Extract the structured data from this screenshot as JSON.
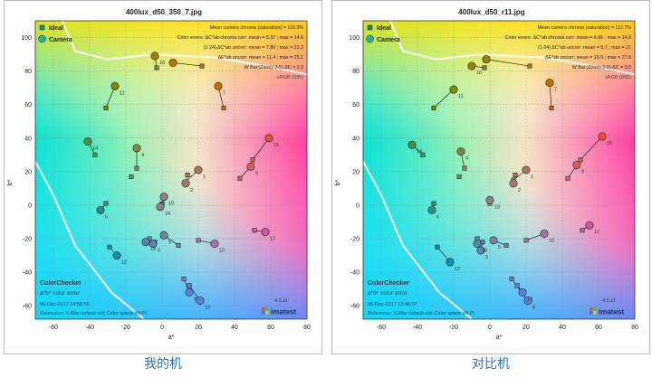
{
  "panels": [
    {
      "title": "400lux_d50_350_7.jpg",
      "caption": "我的机",
      "chroma_title": "Mean camera chroma (saturation) = 116.3%",
      "err_chroma": "Color errors:  ΔC*ab chroma corr:  mean = 5.37 ;  max = 14.6",
      "err_uncorr": "(1-24)        ΔC*ab uncorr:  mean = 7.86 ;  max = 22.3",
      "err_e": "ΔE*ab uncorr:  mean = 11.4 ;  max = 25.1",
      "wbal": "W Bal (Zones 2-5)  ΔC = 2.3",
      "srgb": "sRGB (D65)",
      "legend_ideal": "Ideal",
      "legend_camera": "Camera",
      "cc_title": "ColorChecker",
      "cc_sub": "a*b* color error",
      "date": "06-Dec-2017  14:58:56",
      "reference": "Reference: X-Rite default old; Color space Wt Pt",
      "version": "4.5.11",
      "brand": "imatest",
      "xlabel": "a*",
      "ylabel": "b*",
      "xticks": [
        "-60",
        "-40",
        "-20",
        "0",
        "20",
        "40",
        "60",
        "80"
      ],
      "yticks": [
        "100",
        "80",
        "60",
        "40",
        "20",
        "0",
        "-20",
        "-40",
        "-60"
      ]
    },
    {
      "title": "400lux_d50_r11.jpg",
      "caption": "对比机",
      "chroma_title": "Mean camera chroma (saturation) = 112.7%",
      "err_chroma": "Color errors:  ΔC*ab chroma corr:  mean = 6.66 ;  max = 14.9",
      "err_uncorr": "(1-24)        ΔC*ab uncorr:  mean = 8.7 ;  max = 21",
      "err_e": "ΔE*ab uncorr:  mean = 15.5 ;  max = 27.8",
      "wbal": "W Bal (Zones 2-5)  ΔC = 3.0",
      "srgb": "sRGB (D65)",
      "legend_ideal": "Ideal",
      "legend_camera": "Camera",
      "cc_title": "ColorChecker",
      "cc_sub": "a*b* color error",
      "date": "06-Dec-2017  13:46:07",
      "reference": "Reference: X-Rite default old; Color space Wt Pt",
      "version": "4.5.11",
      "brand": "imatest",
      "xlabel": "a*",
      "ylabel": "b*",
      "xticks": [
        "-60",
        "-40",
        "-20",
        "0",
        "20",
        "40",
        "60",
        "80"
      ],
      "yticks": [
        "100",
        "80",
        "60",
        "40",
        "20",
        "0",
        "-20",
        "-40",
        "-60"
      ]
    }
  ],
  "chart_data": [
    {
      "type": "scatter",
      "title": "400lux_d50_350_7.jpg",
      "xlabel": "a*",
      "ylabel": "b*",
      "xlim": [
        -70,
        80
      ],
      "ylim": [
        -68,
        110
      ],
      "series": [
        {
          "name": "Ideal",
          "points": [
            {
              "id": "1",
              "x": 13,
              "y": 14
            },
            {
              "id": "2",
              "x": 14,
              "y": 18
            },
            {
              "id": "3",
              "x": -4,
              "y": -22
            },
            {
              "id": "4",
              "x": -14,
              "y": 22
            },
            {
              "id": "5",
              "x": 9,
              "y": -24
            },
            {
              "id": "6",
              "x": -31,
              "y": 1
            },
            {
              "id": "7",
              "x": 34,
              "y": 58
            },
            {
              "id": "8",
              "x": 12,
              "y": -44
            },
            {
              "id": "9",
              "x": 43,
              "y": 16
            },
            {
              "id": "10",
              "x": 20,
              "y": -21
            },
            {
              "id": "11",
              "x": -31,
              "y": 58
            },
            {
              "id": "12",
              "x": -29,
              "y": -25
            },
            {
              "id": "13",
              "x": 15,
              "y": -48
            },
            {
              "id": "14",
              "x": -37,
              "y": 30
            },
            {
              "id": "15",
              "x": 50,
              "y": 27
            },
            {
              "id": "16",
              "x": -3,
              "y": 82
            },
            {
              "id": "17",
              "x": 51,
              "y": -15
            },
            {
              "id": "18",
              "x": -7,
              "y": -20
            },
            {
              "id": "19",
              "x": 0,
              "y": 1
            },
            {
              "id": "21",
              "x": 0,
              "y": 0
            },
            {
              "id": "23",
              "x": 0,
              "y": 0
            },
            {
              "id": "24",
              "x": 0,
              "y": 0
            },
            {
              "id": "a",
              "x": -17,
              "y": 17
            },
            {
              "id": "b",
              "x": 22,
              "y": 83
            }
          ]
        },
        {
          "name": "Camera",
          "points": [
            {
              "id": "1",
              "x": 20,
              "y": 21
            },
            {
              "id": "2",
              "x": 13,
              "y": 13
            },
            {
              "id": "3",
              "x": -5,
              "y": -23
            },
            {
              "id": "4",
              "x": -14,
              "y": 34
            },
            {
              "id": "5",
              "x": 1,
              "y": -18
            },
            {
              "id": "6",
              "x": -34,
              "y": -3
            },
            {
              "id": "7",
              "x": 31,
              "y": 71
            },
            {
              "id": "8",
              "x": 15,
              "y": -52
            },
            {
              "id": "9",
              "x": 49,
              "y": 23
            },
            {
              "id": "10",
              "x": 29,
              "y": -23
            },
            {
              "id": "11",
              "x": -26,
              "y": 71
            },
            {
              "id": "12",
              "x": -25,
              "y": -30
            },
            {
              "id": "13",
              "x": 21,
              "y": -57
            },
            {
              "id": "14",
              "x": -41,
              "y": 38
            },
            {
              "id": "15",
              "x": 59,
              "y": 40
            },
            {
              "id": "16",
              "x": -4,
              "y": 89
            },
            {
              "id": "17",
              "x": 57,
              "y": -16
            },
            {
              "id": "18",
              "x": -9,
              "y": -22
            },
            {
              "id": "19",
              "x": 1,
              "y": 5
            },
            {
              "id": "24",
              "x": -1,
              "y": -1
            },
            {
              "id": "b",
              "x": 6,
              "y": 85
            }
          ]
        }
      ]
    },
    {
      "type": "scatter",
      "title": "400lux_d50_r11.jpg",
      "xlabel": "a*",
      "ylabel": "b*",
      "xlim": [
        -70,
        80
      ],
      "ylim": [
        -68,
        110
      ],
      "series": [
        {
          "name": "Ideal",
          "points": [
            {
              "id": "1",
              "x": 13,
              "y": 15
            },
            {
              "id": "2",
              "x": 14,
              "y": 18
            },
            {
              "id": "3",
              "x": -4,
              "y": -22
            },
            {
              "id": "4",
              "x": -14,
              "y": 22
            },
            {
              "id": "5",
              "x": 9,
              "y": -24
            },
            {
              "id": "6",
              "x": -31,
              "y": 1
            },
            {
              "id": "7",
              "x": 34,
              "y": 58
            },
            {
              "id": "8",
              "x": 12,
              "y": -44
            },
            {
              "id": "9",
              "x": 43,
              "y": 16
            },
            {
              "id": "10",
              "x": 20,
              "y": -21
            },
            {
              "id": "11",
              "x": -31,
              "y": 58
            },
            {
              "id": "12",
              "x": -29,
              "y": -25
            },
            {
              "id": "13",
              "x": 15,
              "y": -48
            },
            {
              "id": "14",
              "x": -37,
              "y": 30
            },
            {
              "id": "15",
              "x": 50,
              "y": 27
            },
            {
              "id": "16",
              "x": -3,
              "y": 82
            },
            {
              "id": "17",
              "x": 51,
              "y": -15
            },
            {
              "id": "18",
              "x": -7,
              "y": -20
            },
            {
              "id": "19",
              "x": 0,
              "y": 1
            },
            {
              "id": "a",
              "x": -17,
              "y": 17
            },
            {
              "id": "b",
              "x": 22,
              "y": 83
            }
          ]
        },
        {
          "name": "Camera",
          "points": [
            {
              "id": "1",
              "x": 20,
              "y": 21
            },
            {
              "id": "2",
              "x": 13,
              "y": 13
            },
            {
              "id": "3",
              "x": -5,
              "y": -27
            },
            {
              "id": "4",
              "x": -16,
              "y": 32
            },
            {
              "id": "5",
              "x": 2,
              "y": -21
            },
            {
              "id": "6",
              "x": -32,
              "y": -3
            },
            {
              "id": "7",
              "x": 33,
              "y": 73
            },
            {
              "id": "8",
              "x": 21,
              "y": -57
            },
            {
              "id": "9",
              "x": 48,
              "y": 24
            },
            {
              "id": "10",
              "x": 30,
              "y": -17
            },
            {
              "id": "11",
              "x": -20,
              "y": 69
            },
            {
              "id": "12",
              "x": -22,
              "y": -34
            },
            {
              "id": "13",
              "x": 18,
              "y": -52
            },
            {
              "id": "14",
              "x": -43,
              "y": 36
            },
            {
              "id": "15",
              "x": 62,
              "y": 41
            },
            {
              "id": "16",
              "x": -10,
              "y": 83
            },
            {
              "id": "17",
              "x": 55,
              "y": -12
            },
            {
              "id": "18",
              "x": -7,
              "y": -23
            },
            {
              "id": "19",
              "x": 0,
              "y": 3
            },
            {
              "id": "b",
              "x": -2,
              "y": 87
            }
          ]
        }
      ]
    }
  ]
}
